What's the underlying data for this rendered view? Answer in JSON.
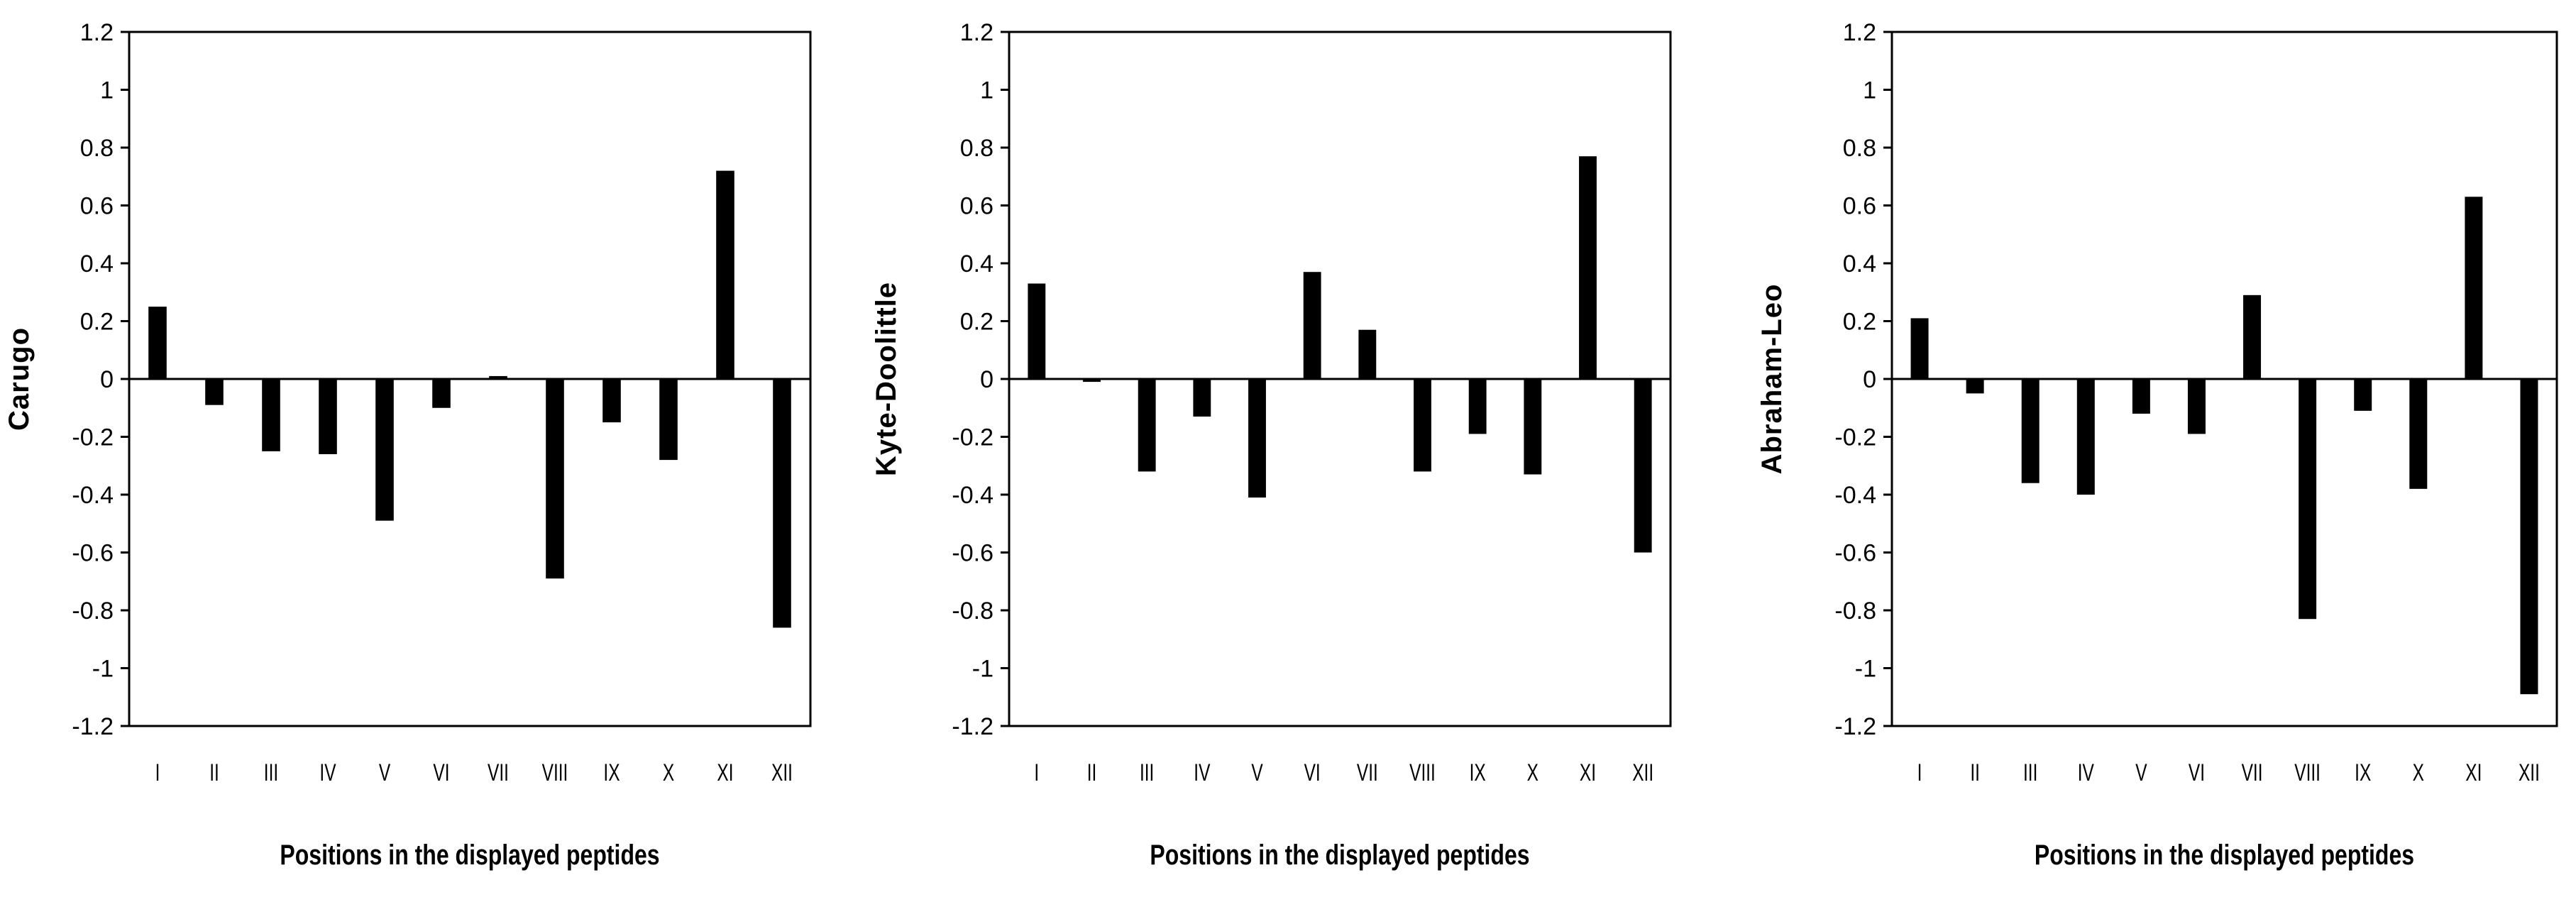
{
  "chart_data": [
    {
      "type": "bar",
      "categories": [
        "I",
        "II",
        "III",
        "IV",
        "V",
        "VI",
        "VII",
        "VIII",
        "IX",
        "X",
        "XI",
        "XII"
      ],
      "values": [
        0.25,
        -0.09,
        -0.25,
        -0.26,
        -0.49,
        -0.1,
        0.01,
        -0.69,
        -0.15,
        -0.28,
        0.72,
        -0.86
      ],
      "title": "",
      "xlabel": "Positions in the displayed peptides",
      "ylabel": "Carugo",
      "ylim": [
        -1.2,
        1.2
      ],
      "yticks": [
        "1.2",
        "1",
        "0.8",
        "0.6",
        "0.4",
        "0.2",
        "0",
        "-0.2",
        "-0.4",
        "-0.6",
        "-0.8",
        "-1",
        "-1.2"
      ],
      "grid": false,
      "bar_color": "#000000"
    },
    {
      "type": "bar",
      "categories": [
        "I",
        "II",
        "III",
        "IV",
        "V",
        "VI",
        "VII",
        "VIII",
        "IX",
        "X",
        "XI",
        "XII"
      ],
      "values": [
        0.33,
        -0.01,
        -0.32,
        -0.13,
        -0.41,
        0.37,
        0.17,
        -0.32,
        -0.19,
        -0.33,
        0.77,
        -0.6
      ],
      "title": "",
      "xlabel": "Positions in the displayed peptides",
      "ylabel": "Kyte-Doolittle",
      "ylim": [
        -1.2,
        1.2
      ],
      "yticks": [
        "1.2",
        "1",
        "0.8",
        "0.6",
        "0.4",
        "0.2",
        "0",
        "-0.2",
        "-0.4",
        "-0.6",
        "-0.8",
        "-1",
        "-1.2"
      ],
      "grid": false,
      "bar_color": "#000000"
    },
    {
      "type": "bar",
      "categories": [
        "I",
        "II",
        "III",
        "IV",
        "V",
        "VI",
        "VII",
        "VIII",
        "IX",
        "X",
        "XI",
        "XII"
      ],
      "values": [
        0.21,
        -0.05,
        -0.36,
        -0.4,
        -0.12,
        -0.19,
        0.29,
        -0.83,
        -0.11,
        -0.38,
        0.63,
        -1.09
      ],
      "title": "",
      "xlabel": "Positions in the displayed peptides",
      "ylabel": "Abraham-Leo",
      "ylim": [
        -1.2,
        1.2
      ],
      "yticks": [
        "1.2",
        "1",
        "0.8",
        "0.6",
        "0.4",
        "0.2",
        "0",
        "-0.2",
        "-0.4",
        "-0.6",
        "-0.8",
        "-1",
        "-1.2"
      ],
      "grid": false,
      "bar_color": "#000000"
    }
  ]
}
